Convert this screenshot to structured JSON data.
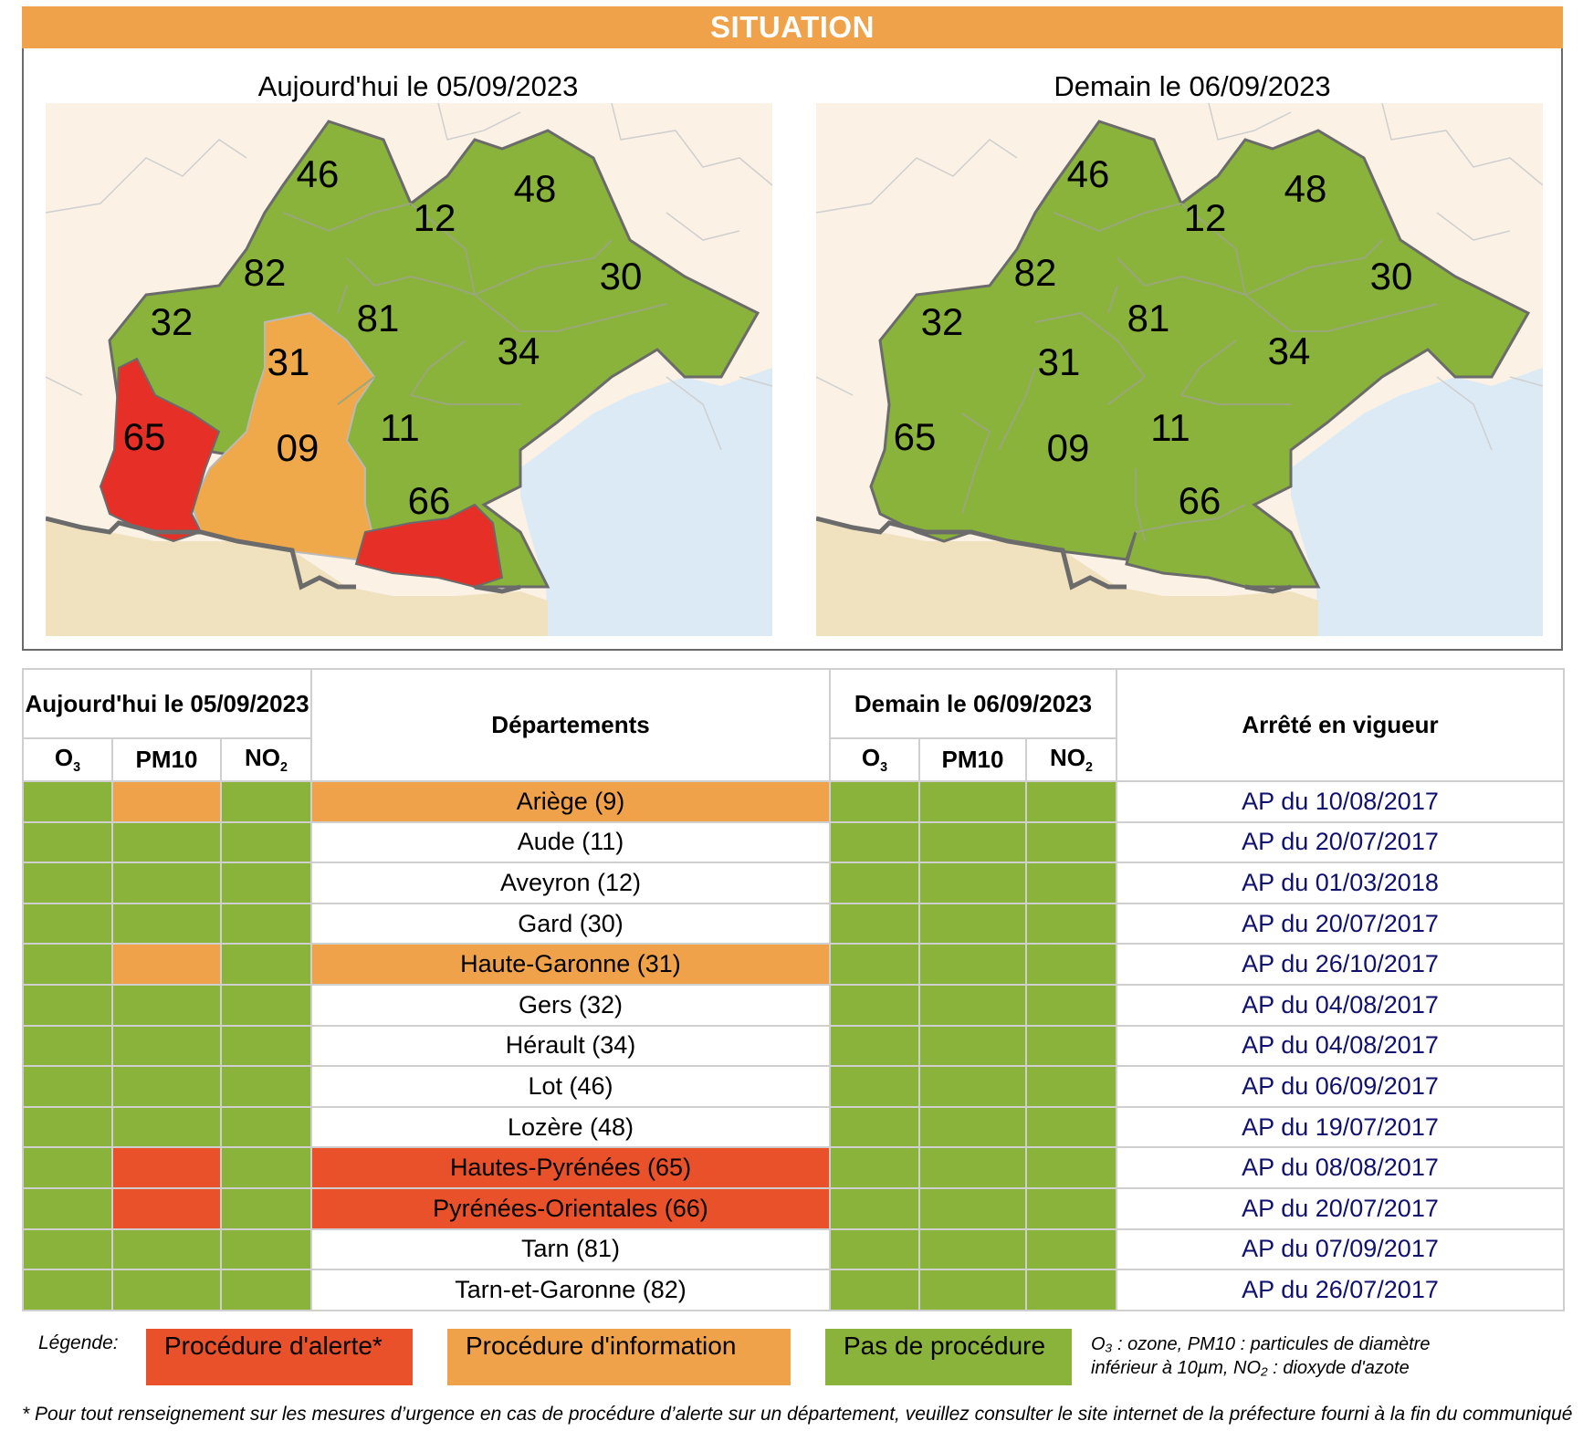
{
  "header": {
    "title": "SITUATION"
  },
  "maps": {
    "today_title": "Aujourd'hui le 05/09/2023",
    "tomorrow_title": "Demain le 06/09/2023",
    "today_labels": [
      "46",
      "12",
      "48",
      "82",
      "30",
      "32",
      "81",
      "31",
      "34",
      "65",
      "09",
      "11",
      "66"
    ],
    "tomorrow_labels": [
      "46",
      "12",
      "48",
      "82",
      "30",
      "32",
      "81",
      "31",
      "34",
      "65",
      "09",
      "11",
      "66"
    ],
    "colors": {
      "green": "#89b33a",
      "orange": "#f0a94a",
      "red": "#e63027",
      "sea": "#dbeaf5",
      "land": "#fbf1e4",
      "spain": "#f0e1bf"
    }
  },
  "table": {
    "today_header": "Aujourd'hui le 05/09/2023",
    "tomorrow_header": "Demain le 06/09/2023",
    "departements_header": "Départements",
    "arrete_header": "Arrêté en vigueur",
    "pollutants": {
      "o3_main": "O",
      "o3_sub": "3",
      "pm10": "PM10",
      "no2_main": "NO",
      "no2_sub": "2"
    },
    "rows": [
      {
        "name": "Ariège (9)",
        "today": [
          "green",
          "orange",
          "green"
        ],
        "level": "orange",
        "tomorrow": [
          "green",
          "green",
          "green"
        ],
        "arrete": "AP du 10/08/2017"
      },
      {
        "name": "Aude (11)",
        "today": [
          "green",
          "green",
          "green"
        ],
        "level": "white",
        "tomorrow": [
          "green",
          "green",
          "green"
        ],
        "arrete": "AP du 20/07/2017"
      },
      {
        "name": "Aveyron (12)",
        "today": [
          "green",
          "green",
          "green"
        ],
        "level": "white",
        "tomorrow": [
          "green",
          "green",
          "green"
        ],
        "arrete": "AP du 01/03/2018"
      },
      {
        "name": "Gard (30)",
        "today": [
          "green",
          "green",
          "green"
        ],
        "level": "white",
        "tomorrow": [
          "green",
          "green",
          "green"
        ],
        "arrete": "AP du 20/07/2017"
      },
      {
        "name": "Haute-Garonne (31)",
        "today": [
          "green",
          "orange",
          "green"
        ],
        "level": "orange",
        "tomorrow": [
          "green",
          "green",
          "green"
        ],
        "arrete": "AP du 26/10/2017"
      },
      {
        "name": "Gers (32)",
        "today": [
          "green",
          "green",
          "green"
        ],
        "level": "white",
        "tomorrow": [
          "green",
          "green",
          "green"
        ],
        "arrete": "AP du 04/08/2017"
      },
      {
        "name": "Hérault (34)",
        "today": [
          "green",
          "green",
          "green"
        ],
        "level": "white",
        "tomorrow": [
          "green",
          "green",
          "green"
        ],
        "arrete": "AP du 04/08/2017"
      },
      {
        "name": "Lot (46)",
        "today": [
          "green",
          "green",
          "green"
        ],
        "level": "white",
        "tomorrow": [
          "green",
          "green",
          "green"
        ],
        "arrete": "AP du 06/09/2017"
      },
      {
        "name": "Lozère (48)",
        "today": [
          "green",
          "green",
          "green"
        ],
        "level": "white",
        "tomorrow": [
          "green",
          "green",
          "green"
        ],
        "arrete": "AP du 19/07/2017"
      },
      {
        "name": "Hautes-Pyrénées (65)",
        "today": [
          "green",
          "red",
          "green"
        ],
        "level": "red",
        "tomorrow": [
          "green",
          "green",
          "green"
        ],
        "arrete": "AP du 08/08/2017"
      },
      {
        "name": "Pyrénées-Orientales (66)",
        "today": [
          "green",
          "red",
          "green"
        ],
        "level": "red",
        "tomorrow": [
          "green",
          "green",
          "green"
        ],
        "arrete": "AP du 20/07/2017"
      },
      {
        "name": "Tarn (81)",
        "today": [
          "green",
          "green",
          "green"
        ],
        "level": "white",
        "tomorrow": [
          "green",
          "green",
          "green"
        ],
        "arrete": "AP du 07/09/2017"
      },
      {
        "name": "Tarn-et-Garonne (82)",
        "today": [
          "green",
          "green",
          "green"
        ],
        "level": "white",
        "tomorrow": [
          "green",
          "green",
          "green"
        ],
        "arrete": "AP du 26/07/2017"
      }
    ]
  },
  "legend": {
    "label": "Légende:",
    "alerte": "Procédure d'alerte*",
    "information": "Procédure d'information",
    "aucune": "Pas de procédure",
    "note_line1": "O₃ : ozone, PM10 : particules de diamètre",
    "note_line2": "inférieur à 10µm, NO₂ : dioxyde d'azote"
  },
  "footnote": "* Pour tout renseignement sur les mesures d’urgence en cas de procédure d’alerte sur un département, veuillez consulter le site internet de la préfecture fourni à la fin du communiqué"
}
